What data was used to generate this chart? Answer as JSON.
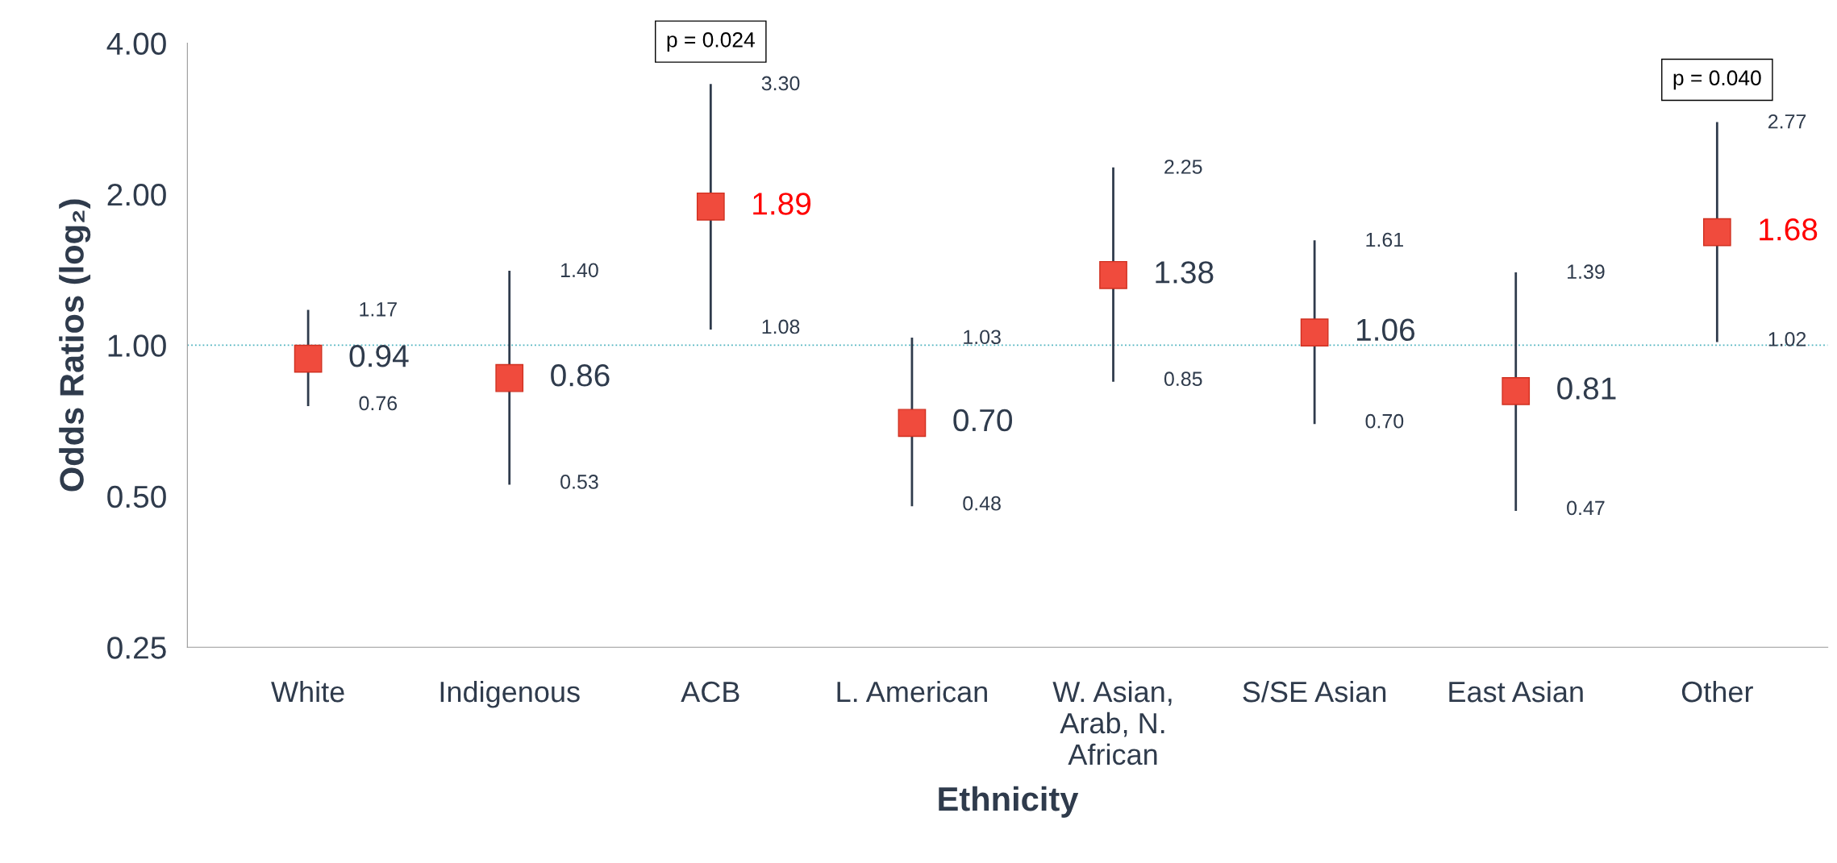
{
  "chart_data": {
    "type": "scatter",
    "xlabel": "Ethnicity",
    "ylabel": "Odds Ratios (log₂)",
    "categories": [
      "White",
      "Indigenous",
      "ACB",
      "L. American",
      "W. Asian,\nArab, N.\nAfrican",
      "S/SE Asian",
      "East Asian",
      "Other"
    ],
    "series": [
      {
        "color": "#f04b3d",
        "values": [
          0.94,
          0.86,
          1.89,
          0.7,
          1.38,
          1.06,
          0.81,
          1.68
        ],
        "value_labels": [
          "0.94",
          "0.86",
          "1.89",
          "0.70",
          "1.38",
          "1.06",
          "0.81",
          "1.68"
        ],
        "errors": [
          [
            0.76,
            1.17
          ],
          [
            0.53,
            1.4
          ],
          [
            1.08,
            3.3
          ],
          [
            0.48,
            1.03
          ],
          [
            0.85,
            2.25
          ],
          [
            0.7,
            1.61
          ],
          [
            0.47,
            1.39
          ],
          [
            1.02,
            2.77
          ]
        ]
      }
    ],
    "log": "y",
    "ylim": [
      0.25,
      4
    ],
    "yticks": [
      {
        "value": 0.25,
        "label": "0.25"
      },
      {
        "value": 0.5,
        "label": "0.50"
      },
      {
        "value": 1,
        "label": "1.00"
      },
      {
        "value": 2,
        "label": "2.00"
      },
      {
        "value": 4,
        "label": "4.00"
      }
    ],
    "ref_lines": [
      {
        "axis": "y",
        "value": 1,
        "color": "#4fb3bf",
        "line_style": "dotted"
      }
    ],
    "annotations": [
      {
        "text": "p = 0.024",
        "x": "ACB",
        "y": 3.3
      },
      {
        "text": "p = 0.040",
        "x": "Other",
        "y": 2.77
      },
      {
        "text": "1.17",
        "x": "White",
        "y": 1.17
      },
      {
        "text": "0.76",
        "x": "White",
        "y": 0.76
      },
      {
        "text": "1.40",
        "x": "Indigenous",
        "y": 1.4
      },
      {
        "text": "0.53",
        "x": "Indigenous",
        "y": 0.53
      },
      {
        "text": "3.30",
        "x": "ACB",
        "y": 3.3
      },
      {
        "text": "1.08",
        "x": "ACB",
        "y": 1.08
      },
      {
        "text": "1.03",
        "x": "L. American",
        "y": 1.03
      },
      {
        "text": "0.48",
        "x": "L. American",
        "y": 0.48
      },
      {
        "text": "2.25",
        "x": "W. Asian,\nArab, N.\nAfrican",
        "y": 2.25
      },
      {
        "text": "0.85",
        "x": "W. Asian,\nArab, N.\nAfrican",
        "y": 0.85
      },
      {
        "text": "1.61",
        "x": "S/SE Asian",
        "y": 1.61
      },
      {
        "text": "0.70",
        "x": "S/SE Asian",
        "y": 0.7
      },
      {
        "text": "1.39",
        "x": "East Asian",
        "y": 1.39
      },
      {
        "text": "0.47",
        "x": "East Asian",
        "y": 0.47
      },
      {
        "text": "2.77",
        "x": "Other",
        "y": 2.77
      },
      {
        "text": "1.02",
        "x": "Other",
        "y": 1.02
      }
    ],
    "marker": "square",
    "grid": false
  }
}
